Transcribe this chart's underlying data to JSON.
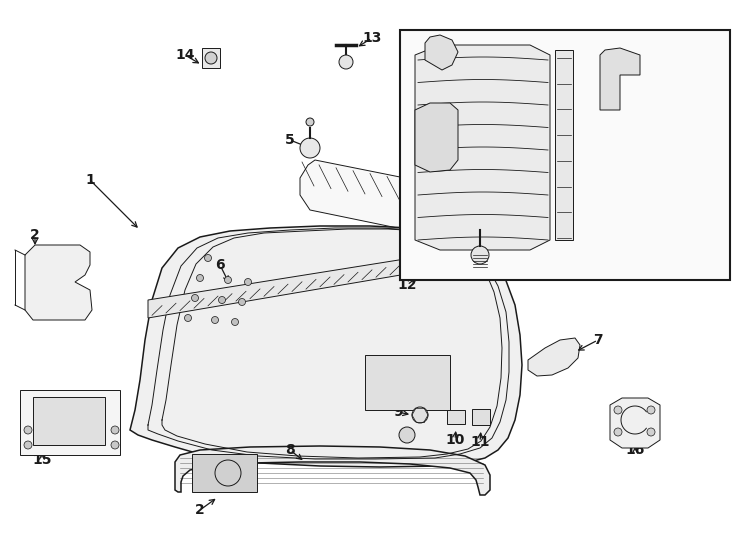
{
  "bg_color": "#ffffff",
  "line_color": "#1a1a1a",
  "fig_width": 7.34,
  "fig_height": 5.4,
  "dpi": 100,
  "label_fontsize": 10
}
